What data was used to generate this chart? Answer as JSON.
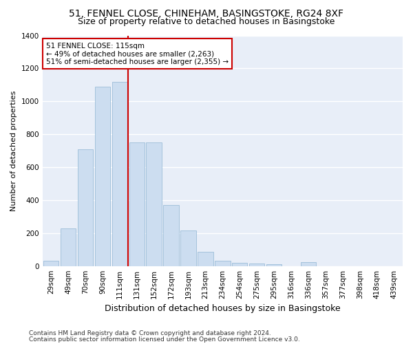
{
  "title1": "51, FENNEL CLOSE, CHINEHAM, BASINGSTOKE, RG24 8XF",
  "title2": "Size of property relative to detached houses in Basingstoke",
  "xlabel": "Distribution of detached houses by size in Basingstoke",
  "ylabel": "Number of detached properties",
  "categories": [
    "29sqm",
    "49sqm",
    "70sqm",
    "90sqm",
    "111sqm",
    "131sqm",
    "152sqm",
    "172sqm",
    "193sqm",
    "213sqm",
    "234sqm",
    "254sqm",
    "275sqm",
    "295sqm",
    "316sqm",
    "336sqm",
    "357sqm",
    "377sqm",
    "398sqm",
    "418sqm",
    "439sqm"
  ],
  "values": [
    30,
    230,
    710,
    1090,
    1120,
    750,
    750,
    370,
    215,
    85,
    30,
    18,
    15,
    12,
    0,
    25,
    0,
    0,
    0,
    0,
    0
  ],
  "bar_color": "#ccddf0",
  "bar_edge_color": "#9bbdd8",
  "vline_index": 4,
  "vline_color": "#cc0000",
  "annotation_text": "51 FENNEL CLOSE: 115sqm\n← 49% of detached houses are smaller (2,263)\n51% of semi-detached houses are larger (2,355) →",
  "annotation_box_color": "#ffffff",
  "annotation_box_edge": "#cc0000",
  "ylim": [
    0,
    1400
  ],
  "yticks": [
    0,
    200,
    400,
    600,
    800,
    1000,
    1200,
    1400
  ],
  "fig_bg": "#ffffff",
  "plot_bg": "#e8eef8",
  "grid_color": "#ffffff",
  "title1_fontsize": 10,
  "title2_fontsize": 9,
  "xlabel_fontsize": 9,
  "ylabel_fontsize": 8,
  "tick_fontsize": 7.5,
  "annotation_fontsize": 7.5,
  "footer_fontsize": 6.5,
  "footer1": "Contains HM Land Registry data © Crown copyright and database right 2024.",
  "footer2": "Contains public sector information licensed under the Open Government Licence v3.0."
}
